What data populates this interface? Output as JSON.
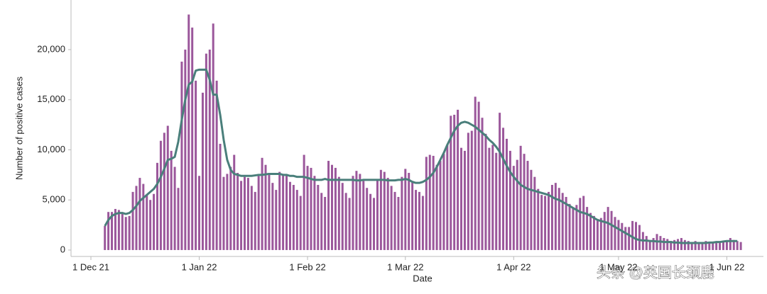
{
  "chart_data": {
    "type": "bar",
    "x_label": "Date",
    "y_label": "Number of positive cases",
    "watermark": "头条 @英国长颈鹿",
    "xlim": [
      "2021-11-25",
      "2022-06-10"
    ],
    "xticks": [
      {
        "value": "2021-12-01",
        "label": "1 Dec 21"
      },
      {
        "value": "2022-01-01",
        "label": "1 Jan 22"
      },
      {
        "value": "2022-02-01",
        "label": "1 Feb 22"
      },
      {
        "value": "2022-03-01",
        "label": "1 Mar 22"
      },
      {
        "value": "2022-04-01",
        "label": "1 Apr 22"
      },
      {
        "value": "2022-05-01",
        "label": "1 May 22"
      },
      {
        "value": "2022-06-01",
        "label": "1 Jun 22"
      }
    ],
    "ylim": [
      -640,
      24950
    ],
    "yticks": [
      0,
      {
        "value": 5000,
        "label": "5,000"
      },
      {
        "value": 10000,
        "label": "10,000"
      },
      {
        "value": 15000,
        "label": "15,000"
      },
      {
        "value": 20000,
        "label": "20,000"
      }
    ],
    "x": [
      "2021-12-05",
      "2021-12-06",
      "2021-12-07",
      "2021-12-08",
      "2021-12-09",
      "2021-12-10",
      "2021-12-11",
      "2021-12-12",
      "2021-12-13",
      "2021-12-14",
      "2021-12-15",
      "2021-12-16",
      "2021-12-17",
      "2021-12-18",
      "2021-12-19",
      "2021-12-20",
      "2021-12-21",
      "2021-12-22",
      "2021-12-23",
      "2021-12-24",
      "2021-12-25",
      "2021-12-26",
      "2021-12-27",
      "2021-12-28",
      "2021-12-29",
      "2021-12-30",
      "2021-12-31",
      "2022-01-01",
      "2022-01-02",
      "2022-01-03",
      "2022-01-04",
      "2022-01-05",
      "2022-01-06",
      "2022-01-07",
      "2022-01-08",
      "2022-01-09",
      "2022-01-10",
      "2022-01-11",
      "2022-01-12",
      "2022-01-13",
      "2022-01-14",
      "2022-01-15",
      "2022-01-16",
      "2022-01-17",
      "2022-01-18",
      "2022-01-19",
      "2022-01-20",
      "2022-01-21",
      "2022-01-22",
      "2022-01-23",
      "2022-01-24",
      "2022-01-25",
      "2022-01-26",
      "2022-01-27",
      "2022-01-28",
      "2022-01-29",
      "2022-01-30",
      "2022-01-31",
      "2022-02-01",
      "2022-02-02",
      "2022-02-03",
      "2022-02-04",
      "2022-02-05",
      "2022-02-06",
      "2022-02-07",
      "2022-02-08",
      "2022-02-09",
      "2022-02-10",
      "2022-02-11",
      "2022-02-12",
      "2022-02-13",
      "2022-02-14",
      "2022-02-15",
      "2022-02-16",
      "2022-02-17",
      "2022-02-18",
      "2022-02-19",
      "2022-02-20",
      "2022-02-21",
      "2022-02-22",
      "2022-02-23",
      "2022-02-24",
      "2022-02-25",
      "2022-02-26",
      "2022-02-27",
      "2022-02-28",
      "2022-03-01",
      "2022-03-02",
      "2022-03-03",
      "2022-03-04",
      "2022-03-05",
      "2022-03-06",
      "2022-03-07",
      "2022-03-08",
      "2022-03-09",
      "2022-03-10",
      "2022-03-11",
      "2022-03-12",
      "2022-03-13",
      "2022-03-14",
      "2022-03-15",
      "2022-03-16",
      "2022-03-17",
      "2022-03-18",
      "2022-03-19",
      "2022-03-20",
      "2022-03-21",
      "2022-03-22",
      "2022-03-23",
      "2022-03-24",
      "2022-03-25",
      "2022-03-26",
      "2022-03-27",
      "2022-03-28",
      "2022-03-29",
      "2022-03-30",
      "2022-03-31",
      "2022-04-01",
      "2022-04-02",
      "2022-04-03",
      "2022-04-04",
      "2022-04-05",
      "2022-04-06",
      "2022-04-07",
      "2022-04-08",
      "2022-04-09",
      "2022-04-10",
      "2022-04-11",
      "2022-04-12",
      "2022-04-13",
      "2022-04-14",
      "2022-04-15",
      "2022-04-16",
      "2022-04-17",
      "2022-04-18",
      "2022-04-19",
      "2022-04-20",
      "2022-04-21",
      "2022-04-22",
      "2022-04-23",
      "2022-04-24",
      "2022-04-25",
      "2022-04-26",
      "2022-04-27",
      "2022-04-28",
      "2022-04-29",
      "2022-04-30",
      "2022-05-01",
      "2022-05-02",
      "2022-05-03",
      "2022-05-04",
      "2022-05-05",
      "2022-05-06",
      "2022-05-07",
      "2022-05-08",
      "2022-05-09",
      "2022-05-10",
      "2022-05-11",
      "2022-05-12",
      "2022-05-13",
      "2022-05-14",
      "2022-05-15",
      "2022-05-16",
      "2022-05-17",
      "2022-05-18",
      "2022-05-19",
      "2022-05-20",
      "2022-05-21",
      "2022-05-22",
      "2022-05-23",
      "2022-05-24",
      "2022-05-25",
      "2022-05-26",
      "2022-05-27",
      "2022-05-28",
      "2022-05-29",
      "2022-05-30",
      "2022-05-31",
      "2022-06-01",
      "2022-06-02",
      "2022-06-03",
      "2022-06-04",
      "2022-06-05"
    ],
    "series": [
      {
        "type": "bar",
        "color": "#9b579b",
        "values": [
          2400,
          3800,
          3800,
          4100,
          4000,
          3700,
          3300,
          3400,
          5800,
          6400,
          7200,
          6600,
          5500,
          5000,
          5600,
          8700,
          10900,
          11700,
          12400,
          9900,
          8300,
          6200,
          18800,
          20000,
          23500,
          22200,
          16900,
          7400,
          15700,
          19600,
          20000,
          22600,
          16900,
          10600,
          7300,
          7600,
          8300,
          9500,
          7700,
          6900,
          7300,
          7200,
          6400,
          5800,
          7400,
          9200,
          8500,
          7700,
          6700,
          6000,
          7800,
          7600,
          7500,
          6800,
          6500,
          6000,
          5400,
          9500,
          8400,
          8200,
          7400,
          6500,
          5700,
          5300,
          8900,
          8500,
          8200,
          7300,
          6700,
          5700,
          5200,
          7400,
          7900,
          7600,
          6900,
          6200,
          5600,
          5200,
          7100,
          8000,
          7800,
          7200,
          6400,
          5800,
          5300,
          7300,
          8100,
          7700,
          6900,
          6000,
          5800,
          5400,
          9300,
          9500,
          9400,
          8500,
          8900,
          9600,
          10500,
          13400,
          13500,
          14000,
          10200,
          9900,
          11700,
          11900,
          15300,
          14800,
          13200,
          11600,
          10200,
          10500,
          9700,
          13700,
          12200,
          11100,
          9900,
          8400,
          9000,
          10400,
          9600,
          8900,
          8000,
          7300,
          6100,
          5500,
          5400,
          5800,
          6500,
          6700,
          6200,
          5700,
          5300,
          4600,
          4200,
          4500,
          5200,
          5400,
          4300,
          3700,
          3400,
          3100,
          3200,
          3800,
          4300,
          3900,
          3300,
          3000,
          2700,
          2300,
          2300,
          2900,
          2800,
          2500,
          1800,
          1400,
          1000,
          1200,
          1600,
          1400,
          1200,
          1100,
          900,
          1000,
          1100,
          1200,
          1000,
          900,
          800,
          900,
          800,
          700,
          900,
          800,
          800,
          700,
          700,
          800,
          900,
          1200,
          1000,
          900,
          800
        ]
      },
      {
        "type": "line",
        "color": "#4a7f7b",
        "values": [
          2400,
          3000,
          3400,
          3600,
          3700,
          3700,
          3600,
          3700,
          4000,
          4400,
          4900,
          5200,
          5500,
          5800,
          6100,
          6600,
          7300,
          8100,
          9000,
          9100,
          9300,
          10800,
          13000,
          15000,
          16500,
          16800,
          17900,
          18000,
          18000,
          18000,
          17000,
          15500,
          15500,
          13500,
          11000,
          9000,
          8000,
          7600,
          7500,
          7400,
          7400,
          7400,
          7400,
          7450,
          7500,
          7500,
          7550,
          7600,
          7600,
          7600,
          7600,
          7500,
          7500,
          7400,
          7400,
          7300,
          7300,
          7300,
          7200,
          7100,
          7000,
          7000,
          7000,
          7100,
          7000,
          7000,
          7000,
          7000,
          7000,
          7000,
          7000,
          7000,
          6950,
          6950,
          7000,
          7000,
          7000,
          7000,
          7000,
          7000,
          7000,
          6950,
          6950,
          6950,
          7000,
          7000,
          7100,
          7000,
          6800,
          6700,
          6700,
          6800,
          7000,
          7300,
          7700,
          8300,
          9000,
          9700,
          10500,
          11200,
          11900,
          12400,
          12700,
          12800,
          12700,
          12500,
          12300,
          12000,
          11700,
          11400,
          11000,
          10700,
          10300,
          9800,
          9100,
          8400,
          7800,
          7300,
          6900,
          6500,
          6300,
          6100,
          6000,
          5900,
          5800,
          5700,
          5600,
          5500,
          5300,
          5100,
          5000,
          4800,
          4600,
          4400,
          4200,
          4000,
          3800,
          3700,
          3600,
          3400,
          3200,
          3000,
          2900,
          2800,
          2700,
          2500,
          2300,
          2100,
          1900,
          1700,
          1500,
          1300,
          1100,
          1000,
          950,
          950,
          900,
          900,
          850,
          850,
          800,
          800,
          800,
          750,
          750,
          700,
          700,
          700,
          700,
          700,
          700,
          700,
          700,
          750,
          750,
          800,
          800,
          850,
          900,
          900,
          900,
          900,
          null
        ]
      }
    ]
  }
}
